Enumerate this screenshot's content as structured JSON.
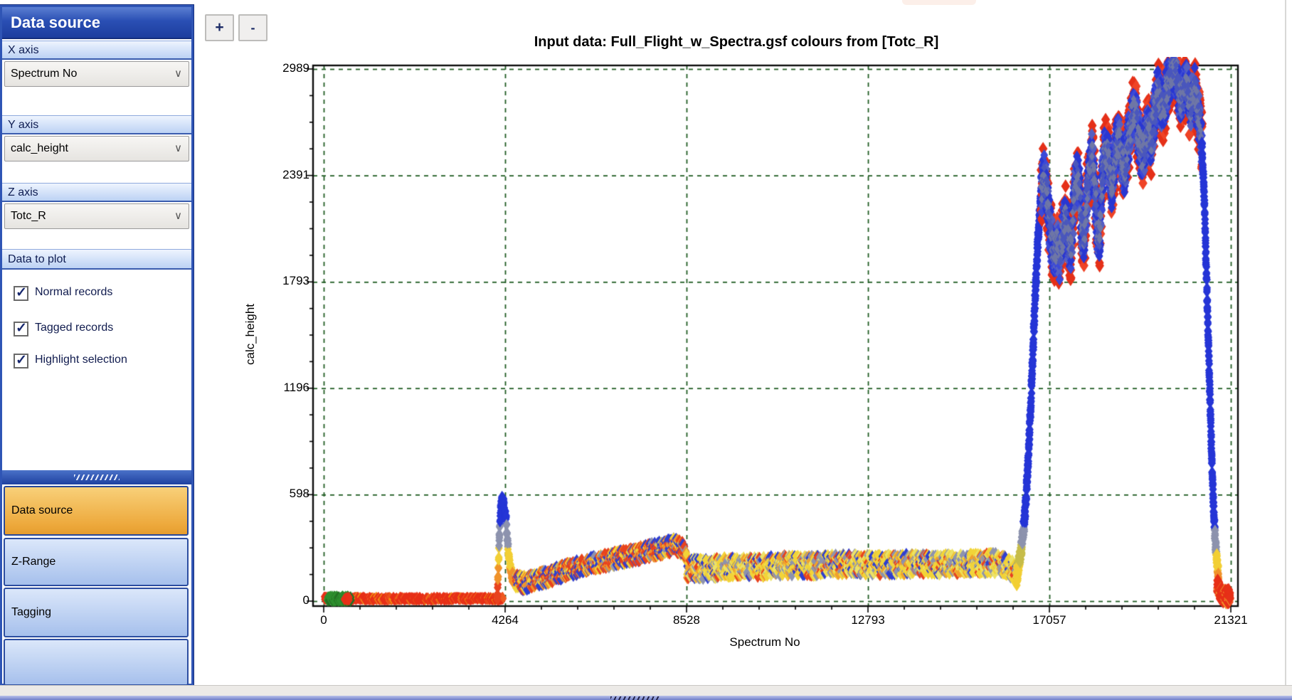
{
  "toolbar": {
    "zoom_in": "+",
    "zoom_out": "-"
  },
  "icons": {
    "checkbox_check": "✓",
    "dropdown_chevron": "∨"
  },
  "sidebar": {
    "header": "Data source",
    "sections": {
      "x_label": "X axis",
      "y_label": "Y axis",
      "z_label": "Z axis",
      "plot_label": "Data to plot"
    },
    "dropdowns": {
      "x_value": "Spectrum No",
      "y_value": "calc_height",
      "z_value": "Totc_R"
    },
    "checkboxes": [
      {
        "label": "Normal records",
        "checked": true
      },
      {
        "label": "Tagged records",
        "checked": true
      },
      {
        "label": "Highlight selection",
        "checked": true
      }
    ],
    "tabs": [
      {
        "label": "Data source",
        "active": true
      },
      {
        "label": "Z-Range",
        "active": false
      },
      {
        "label": "Tagging",
        "active": false
      },
      {
        "label": "",
        "active": false
      }
    ]
  },
  "chart_data": {
    "type": "scatter",
    "title": "Input data: Full_Flight_w_Spectra.gsf colours from [Totc_R]",
    "xlabel": "Spectrum No",
    "ylabel": "calc_height",
    "xlim": [
      0,
      21321
    ],
    "ylim": [
      0,
      2989
    ],
    "x_ticks": [
      0,
      4264,
      8528,
      12793,
      17057,
      21321
    ],
    "y_ticks": [
      0,
      598,
      1196,
      1793,
      2391,
      2989
    ],
    "grid": "dashed-green",
    "grid_color": "#1f5b22",
    "marker": "diamond",
    "value_clamp": 3040,
    "palette": {
      "red": "#e73018",
      "orange": "#f0922a",
      "yellow": "#f2d438",
      "slate": "#8d93ae",
      "blue": "#2535d6",
      "green": "#2f8f2f"
    },
    "segments": [
      {
        "name": "ground-run-red",
        "kind": "band",
        "anchors": [
          [
            10,
            14
          ],
          [
            4230,
            14
          ]
        ],
        "half": 11,
        "step": 13,
        "per_step": 2,
        "size": 6,
        "colors": [
          [
            "#e73018",
            0.8
          ],
          [
            "#ef5a22",
            0.12
          ],
          [
            "#f2930f",
            0.08
          ]
        ]
      },
      {
        "name": "selection-green",
        "kind": "band",
        "anchors": [
          [
            90,
            14
          ],
          [
            640,
            14
          ]
        ],
        "half": 13,
        "step": 9,
        "per_step": 2,
        "size": 7,
        "colors": [
          [
            "#2f8f2f",
            0.75
          ],
          [
            "#247024",
            0.25
          ]
        ]
      },
      {
        "name": "selection-marker-red",
        "kind": "band",
        "anchors": [
          [
            480,
            14
          ],
          [
            610,
            14
          ]
        ],
        "half": 10,
        "step": 9,
        "per_step": 2,
        "size": 6,
        "colors": [
          [
            "#e73018",
            1
          ]
        ]
      },
      {
        "name": "takeoff-spike",
        "kind": "gradient",
        "anchors": [
          [
            4080,
            30
          ],
          [
            4100,
            150
          ],
          [
            4120,
            300
          ],
          [
            4140,
            430
          ],
          [
            4160,
            520
          ],
          [
            4185,
            560
          ],
          [
            4210,
            570
          ],
          [
            4235,
            545
          ],
          [
            4255,
            470
          ],
          [
            4270,
            500
          ],
          [
            4290,
            450
          ],
          [
            4310,
            370
          ],
          [
            4340,
            280
          ],
          [
            4380,
            200
          ],
          [
            4430,
            140
          ],
          [
            4490,
            110
          ]
        ],
        "half": 26,
        "step": 6,
        "per_step": 2,
        "size": 7,
        "thresholds": [
          [
            95,
            "#e8431f"
          ],
          [
            185,
            "#f0922a"
          ],
          [
            300,
            "#f2cf35"
          ],
          [
            430,
            "#8d93ae"
          ],
          [
            99999,
            "#2535d6"
          ]
        ]
      },
      {
        "name": "low-survey",
        "kind": "band",
        "anchors": [
          [
            4510,
            115
          ],
          [
            4700,
            100
          ],
          [
            5000,
            120
          ],
          [
            5300,
            140
          ],
          [
            5600,
            165
          ],
          [
            5900,
            185
          ],
          [
            6200,
            205
          ],
          [
            6500,
            220
          ],
          [
            6800,
            235
          ],
          [
            7100,
            250
          ],
          [
            7400,
            265
          ],
          [
            7700,
            285
          ],
          [
            8000,
            300
          ],
          [
            8250,
            315
          ],
          [
            8420,
            300
          ],
          [
            8528,
            240
          ]
        ],
        "half": 42,
        "step": 13,
        "per_step": 3,
        "size": 7,
        "colors": [
          [
            "#e8431f",
            0.27
          ],
          [
            "#f0922a",
            0.2
          ],
          [
            "#2f3fd0",
            0.26
          ],
          [
            "#f2d438",
            0.19
          ],
          [
            "#8d93ae",
            0.08
          ]
        ]
      },
      {
        "name": "mid-survey",
        "kind": "band",
        "anchors": [
          [
            8540,
            185
          ],
          [
            9000,
            180
          ],
          [
            9600,
            195
          ],
          [
            10200,
            190
          ],
          [
            10800,
            200
          ],
          [
            11400,
            198
          ],
          [
            12000,
            205
          ],
          [
            12600,
            208
          ],
          [
            13200,
            202
          ],
          [
            13800,
            210
          ],
          [
            14400,
            205
          ],
          [
            15000,
            208
          ],
          [
            15600,
            215
          ],
          [
            15900,
            212
          ],
          [
            16150,
            185
          ],
          [
            16300,
            150
          ]
        ],
        "half": 58,
        "step": 15,
        "per_step": 3,
        "size": 7,
        "colors": [
          [
            "#f2d438",
            0.3
          ],
          [
            "#ece268",
            0.15
          ],
          [
            "#8d93ae",
            0.21
          ],
          [
            "#f0a12c",
            0.12
          ],
          [
            "#2f3fd0",
            0.12
          ],
          [
            "#e8431f",
            0.1
          ]
        ]
      },
      {
        "name": "climb",
        "kind": "gradient",
        "anchors": [
          [
            16290,
            140
          ],
          [
            16390,
            280
          ],
          [
            16470,
            450
          ],
          [
            16540,
            700
          ],
          [
            16600,
            1000
          ],
          [
            16660,
            1350
          ],
          [
            16720,
            1700
          ],
          [
            16780,
            2000
          ],
          [
            16840,
            2220
          ],
          [
            16880,
            2320
          ]
        ],
        "half": 52,
        "step": 5,
        "per_step": 3,
        "size": 7,
        "thresholds": [
          [
            210,
            "#f2cf35"
          ],
          [
            320,
            "#c7bd4a"
          ],
          [
            430,
            "#8d93ae"
          ],
          [
            99999,
            "#2535d6"
          ]
        ]
      },
      {
        "name": "high-altitude-band",
        "kind": "multiband",
        "anchors": [
          [
            16860,
            2280
          ],
          [
            16920,
            2380
          ],
          [
            16980,
            2340
          ],
          [
            17040,
            2160
          ],
          [
            17100,
            2030
          ],
          [
            17160,
            1960
          ],
          [
            17240,
            2000
          ],
          [
            17300,
            1930
          ],
          [
            17380,
            2080
          ],
          [
            17440,
            2170
          ],
          [
            17500,
            2030
          ],
          [
            17560,
            1970
          ],
          [
            17620,
            2190
          ],
          [
            17680,
            2380
          ],
          [
            17760,
            2330
          ],
          [
            17820,
            2080
          ],
          [
            17880,
            2040
          ],
          [
            17940,
            2310
          ],
          [
            18000,
            2420
          ],
          [
            18060,
            2500
          ],
          [
            18120,
            2350
          ],
          [
            18180,
            2080
          ],
          [
            18240,
            2050
          ],
          [
            18300,
            2380
          ],
          [
            18360,
            2530
          ],
          [
            18440,
            2480
          ],
          [
            18520,
            2330
          ],
          [
            18580,
            2440
          ],
          [
            18660,
            2610
          ],
          [
            18740,
            2510
          ],
          [
            18820,
            2430
          ],
          [
            18900,
            2570
          ],
          [
            18980,
            2700
          ],
          [
            19060,
            2760
          ],
          [
            19140,
            2640
          ],
          [
            19220,
            2500
          ],
          [
            19300,
            2560
          ],
          [
            19380,
            2660
          ],
          [
            19440,
            2570
          ],
          [
            19520,
            2720
          ],
          [
            19600,
            2860
          ],
          [
            19660,
            2800
          ],
          [
            19740,
            2760
          ],
          [
            19820,
            2890
          ],
          [
            19880,
            2950
          ],
          [
            19960,
            3000
          ],
          [
            20040,
            2960
          ],
          [
            20100,
            2860
          ],
          [
            20160,
            2820
          ],
          [
            20240,
            2900
          ],
          [
            20300,
            2870
          ],
          [
            20360,
            2780
          ],
          [
            20420,
            2830
          ],
          [
            20480,
            2870
          ],
          [
            20540,
            2750
          ],
          [
            20600,
            2660
          ],
          [
            20650,
            2520
          ]
        ],
        "passes": [
          {
            "colors": [
              [
                "#e53018",
                0.8
              ],
              [
                "#ef4326",
                0.2
              ]
            ],
            "half": 190,
            "step": 9,
            "per_step": 2,
            "size": 8
          },
          {
            "colors": [
              [
                "#2937d2",
                0.5
              ],
              [
                "#3b49d8",
                0.3
              ],
              [
                "#5560c2",
                0.2
              ]
            ],
            "half": 135,
            "step": 6,
            "per_step": 2,
            "size": 7
          },
          {
            "colors": [
              [
                "#6f77a6",
                0.55
              ],
              [
                "#4a57bd",
                0.45
              ]
            ],
            "half": 80,
            "step": 10,
            "per_step": 2,
            "size": 5
          }
        ]
      },
      {
        "name": "final-descent",
        "kind": "gradient",
        "anchors": [
          [
            20640,
            2550
          ],
          [
            20680,
            2350
          ],
          [
            20710,
            2150
          ],
          [
            20740,
            1900
          ],
          [
            20770,
            1650
          ],
          [
            20800,
            1400
          ],
          [
            20830,
            1150
          ],
          [
            20860,
            900
          ],
          [
            20890,
            680
          ],
          [
            20920,
            500
          ],
          [
            20950,
            360
          ],
          [
            20990,
            240
          ],
          [
            21030,
            160
          ]
        ],
        "half": 48,
        "step": 5,
        "per_step": 3,
        "size": 7,
        "thresholds": [
          [
            85,
            "#e8431f"
          ],
          [
            175,
            "#f0922a"
          ],
          [
            265,
            "#f2cf35"
          ],
          [
            410,
            "#8d93ae"
          ],
          [
            99999,
            "#2535d6"
          ]
        ]
      },
      {
        "name": "landing-red",
        "kind": "band",
        "anchors": [
          [
            21010,
            85
          ],
          [
            21070,
            50
          ],
          [
            21140,
            32
          ],
          [
            21230,
            26
          ],
          [
            21300,
            30
          ]
        ],
        "half": 36,
        "step": 7,
        "per_step": 3,
        "size": 8,
        "colors": [
          [
            "#e73018",
            0.9
          ],
          [
            "#f0922a",
            0.1
          ]
        ]
      }
    ]
  }
}
